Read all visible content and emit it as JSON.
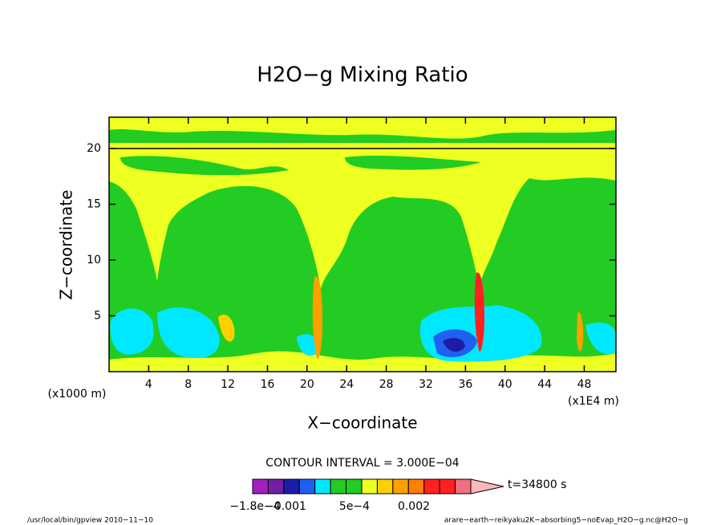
{
  "chart_data": {
    "type": "contour",
    "title": "H2O−g Mixing Ratio",
    "x_label": "X−coordinate",
    "y_label": "Z−coordinate",
    "x_unit": "(x1E4 m)",
    "y_unit": "(x1000 m)",
    "xlim": [
      0,
      51.2
    ],
    "ylim": [
      0,
      22.8
    ],
    "xticks": [
      4,
      8,
      12,
      16,
      20,
      24,
      28,
      32,
      36,
      40,
      44,
      48
    ],
    "yticks": [
      5,
      10,
      15,
      20
    ],
    "contour_interval": "CONTOUR INTERVAL = 3.000E−04",
    "time": "t=34800 s",
    "colorbar": {
      "colors": [
        "#a020c0",
        "#7020a0",
        "#1c1ca8",
        "#2060f0",
        "#00e8ff",
        "#22cc22",
        "#22cc22",
        "#eeff22",
        "#ffd000",
        "#ffa000",
        "#ff8000",
        "#ff2020",
        "#ff2020",
        "#f07080",
        "#ffb8b8"
      ],
      "labels": [
        "−1.8e−4",
        "−0.001",
        "5e−4",
        "0.002"
      ]
    },
    "footer_left": "/usr/local/bin/gpview  2010−11−10",
    "footer_right": "arare−earth−reikyaku2K−absorbing5−noEvap_H2O−g.nc@H2O−g"
  }
}
